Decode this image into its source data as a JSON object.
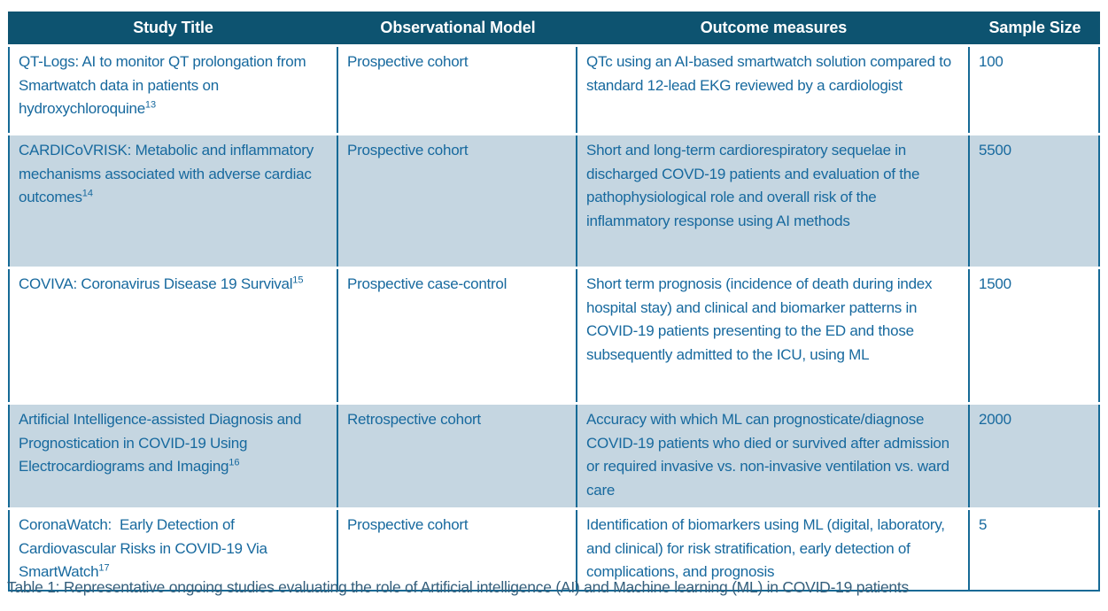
{
  "colors": {
    "header_bg": "#0d5370",
    "header_text": "#ffffff",
    "body_text": "#17699e",
    "row_bg": "#ffffff",
    "alt_row_bg": "#c5d6e1",
    "border": "#166a96",
    "caption_text": "#355f7c"
  },
  "table": {
    "columns": [
      "Study Title",
      "Observational Model",
      "Outcome measures",
      "Sample Size"
    ],
    "rows": [
      {
        "study_title": "QT-Logs: AI to monitor QT prolongation from Smartwatch data in patients on hydroxychloroquine",
        "reference": "13",
        "observational_model": "Prospective cohort",
        "outcome_measures": "QTc using an AI-based smartwatch solution compared to standard 12-lead EKG reviewed by a cardiologist",
        "sample_size": "100"
      },
      {
        "study_title": "CARDICoVRISK: Metabolic and inflammatory mechanisms associated with adverse cardiac outcomes",
        "reference": "14",
        "observational_model": "Prospective cohort",
        "outcome_measures": "Short and long-term cardiorespiratory sequelae in discharged COVD-19 patients and evaluation of the pathophysiological role and overall risk of the inflammatory response using AI methods",
        "sample_size": "5500"
      },
      {
        "study_title": "COVIVA: Coronavirus Disease 19 Survival",
        "reference": "15",
        "observational_model": "Prospective case-control",
        "outcome_measures": "Short term prognosis (incidence of death during index hospital stay) and clinical and biomarker patterns in COVID-19 patients presenting to the ED and those subsequently admitted to the ICU, using ML",
        "sample_size": "1500"
      },
      {
        "study_title": "Artificial Intelligence-assisted Diagnosis and Prognostication in COVID-19 Using Electrocardiograms and Imaging",
        "reference": "16",
        "observational_model": "Retrospective cohort",
        "outcome_measures": "Accuracy with which ML can prognosticate/diagnose COVID-19 patients who died or survived after admission or required invasive vs. non-invasive ventilation vs. ward care",
        "sample_size": "2000"
      },
      {
        "study_title": "CoronaWatch:  Early Detection of Cardiovascular Risks in COVID-19 Via SmartWatch",
        "reference": "17",
        "observational_model": "Prospective cohort",
        "outcome_measures": "Identification of biomarkers using ML (digital, laboratory, and clinical) for risk stratification, early detection of complications, and prognosis",
        "sample_size": "5"
      }
    ]
  },
  "page": {
    "caption": "Table 1: Representative ongoing studies evaluating the role of Artificial intelligence (AI) and Machine learning (ML) in COVID-19 patients"
  }
}
